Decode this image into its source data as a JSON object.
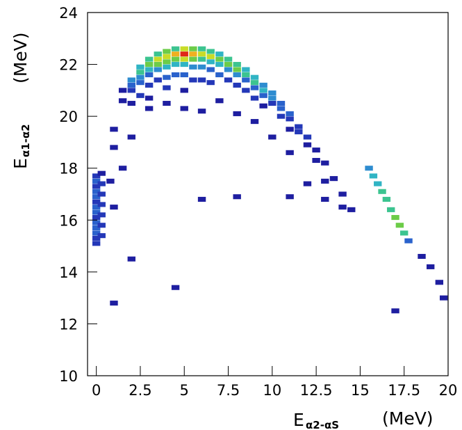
{
  "chart_data": {
    "type": "histogram2d",
    "xlabel": "E",
    "xlabel_subscript": "α2-αS",
    "xlabel_unit": "(MeV)",
    "ylabel": "E",
    "ylabel_subscript": "α1-α2",
    "ylabel_unit": "(MeV)",
    "xlim": [
      -0.5,
      20
    ],
    "ylim": [
      10,
      24
    ],
    "xticks": [
      0,
      2.5,
      5,
      7.5,
      10,
      12.5,
      15,
      17.5,
      20
    ],
    "yticks": [
      10,
      12,
      14,
      16,
      18,
      20,
      22,
      24
    ],
    "colorscale": [
      "#1e1ea0",
      "#2438b8",
      "#2a62cc",
      "#2e8cd0",
      "#30b4c4",
      "#3cc490",
      "#6ccc48",
      "#c8dc28",
      "#f0b020",
      "#e02818"
    ],
    "series": [
      {
        "x": [
          2,
          2,
          2,
          2.5,
          2.5,
          2.5,
          2.5,
          3,
          3,
          3,
          3,
          3,
          3.5,
          3.5,
          3.5,
          3.5,
          3.5,
          4,
          4,
          4,
          4,
          4,
          4,
          4.5,
          4.5,
          4.5,
          4.5,
          4.5,
          5,
          5,
          5,
          5,
          5,
          5,
          5.5,
          5.5,
          5.5,
          5.5,
          5.5,
          6,
          6,
          6,
          6,
          6,
          6.5,
          6.5,
          6.5,
          6.5,
          6.5,
          7,
          7,
          7,
          7,
          7.5,
          7.5,
          7.5,
          7.5,
          8,
          8,
          8,
          8,
          8.5,
          8.5,
          8.5,
          8.5,
          9,
          9,
          9,
          9,
          9.5,
          9.5,
          9.5,
          9.5,
          10,
          10,
          10,
          10.5,
          10.5,
          10.5,
          11,
          11,
          11,
          11.5,
          11.5,
          12,
          12,
          12.5,
          12.5,
          13,
          13,
          13.5,
          14,
          14,
          14.5,
          1.5,
          1.5,
          2,
          2.5,
          3,
          3,
          1,
          1,
          1.5,
          2,
          4,
          5,
          6,
          7,
          8,
          9,
          10,
          11,
          12,
          13,
          0.8,
          1,
          0,
          0,
          0,
          0,
          0,
          0,
          0,
          0,
          0,
          0,
          0,
          0,
          0,
          0,
          0.3,
          0.3,
          0.3,
          0.3,
          0.3,
          0.3,
          0.3,
          15.5,
          15.75,
          16,
          16.25,
          16.5,
          16.75,
          17,
          17.25,
          17.5,
          17.75,
          18.5,
          19,
          19.5,
          19.75,
          17,
          1,
          4.5,
          2,
          6,
          11,
          8
        ],
        "y": [
          21.4,
          21.2,
          21.0,
          21.9,
          21.7,
          21.5,
          21.3,
          22.2,
          22.0,
          21.8,
          21.6,
          21.2,
          22.4,
          22.2,
          22.0,
          21.8,
          21.4,
          22.5,
          22.3,
          22.1,
          21.9,
          21.5,
          21.1,
          22.6,
          22.4,
          22.2,
          22.0,
          21.6,
          22.6,
          22.4,
          22.2,
          22.0,
          21.6,
          21.0,
          22.6,
          22.4,
          22.2,
          21.9,
          21.4,
          22.6,
          22.4,
          22.2,
          21.9,
          21.4,
          22.5,
          22.3,
          22.1,
          21.8,
          21.3,
          22.4,
          22.2,
          22.0,
          21.6,
          22.2,
          22.0,
          21.8,
          21.4,
          22.0,
          21.8,
          21.6,
          21.2,
          21.8,
          21.6,
          21.4,
          21.0,
          21.5,
          21.3,
          21.1,
          20.7,
          21.2,
          21.0,
          20.8,
          20.4,
          20.9,
          20.7,
          20.5,
          20.5,
          20.3,
          20.0,
          20.1,
          19.9,
          19.5,
          19.6,
          19.4,
          19.2,
          18.9,
          18.7,
          18.3,
          18.2,
          17.5,
          17.6,
          17.0,
          16.5,
          16.4,
          20.6,
          21.0,
          20.5,
          20.8,
          20.7,
          20.3,
          19.5,
          18.8,
          18.0,
          19.2,
          20.5,
          20.3,
          20.2,
          20.6,
          20.1,
          19.8,
          19.2,
          18.6,
          17.4,
          16.8,
          17.5,
          16.5,
          15.1,
          15.3,
          15.5,
          15.7,
          15.9,
          16.1,
          16.3,
          16.5,
          16.7,
          16.9,
          17.1,
          17.3,
          17.5,
          17.7,
          15.4,
          15.8,
          16.2,
          16.6,
          17.0,
          17.4,
          17.8,
          18.0,
          17.7,
          17.4,
          17.1,
          16.8,
          16.4,
          16.1,
          15.8,
          15.5,
          15.2,
          14.6,
          14.2,
          13.6,
          13.0,
          12.5,
          12.8,
          13.4,
          14.5,
          16.8,
          16.9,
          16.9
        ],
        "values": [
          4,
          3,
          2,
          5,
          6,
          4,
          3,
          6,
          7,
          5,
          3,
          2,
          6,
          8,
          7,
          4,
          2,
          7,
          8,
          7,
          5,
          3,
          2,
          6,
          9,
          7,
          5,
          3,
          8,
          10,
          8,
          5,
          3,
          1,
          7,
          9,
          7,
          4,
          2,
          6,
          8,
          6,
          4,
          2,
          6,
          8,
          5,
          3,
          2,
          5,
          7,
          5,
          3,
          6,
          7,
          4,
          2,
          6,
          7,
          4,
          2,
          5,
          6,
          3,
          2,
          5,
          6,
          3,
          2,
          4,
          5,
          3,
          1,
          4,
          4,
          2,
          3,
          3,
          2,
          3,
          2,
          1,
          2,
          2,
          2,
          1,
          1,
          1,
          1,
          1,
          1,
          1,
          1,
          1,
          1,
          1,
          1,
          2,
          1,
          1,
          1,
          1,
          1,
          1,
          1,
          1,
          1,
          1,
          1,
          1,
          1,
          1,
          1,
          1,
          1,
          1,
          2,
          2,
          3,
          3,
          3,
          2,
          3,
          3,
          2,
          3,
          3,
          2,
          3,
          2,
          2,
          2,
          2,
          2,
          2,
          2,
          1,
          4,
          5,
          5,
          6,
          6,
          6,
          7,
          7,
          6,
          3,
          1,
          1,
          1,
          1,
          1,
          1,
          1,
          1,
          1,
          1,
          1
        ]
      }
    ]
  }
}
